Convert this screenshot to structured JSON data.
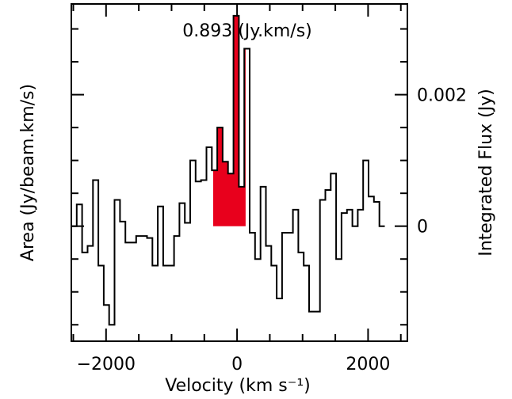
{
  "chart_data": {
    "type": "step",
    "annotation": "0.893 (Jy.km/s)",
    "xlabel": "Velocity (km s⁻¹)",
    "ylabel_left": "Area (Jy/beam.km/s)",
    "ylabel_right": "Integrated Flux (Jy)",
    "xlim": [
      -2530,
      2600
    ],
    "ylim": [
      -0.00175,
      0.00338
    ],
    "x_ticks": [
      -2000,
      0,
      2000
    ],
    "x_tick_labels": [
      "−2000",
      "0",
      "2000"
    ],
    "y_right_ticks": [
      0,
      0.002
    ],
    "y_right_tick_labels": [
      "0",
      "0.002"
    ],
    "grid": false,
    "bin_width": 82.5,
    "bins_start": -2530,
    "values": [
      0,
      0.00033,
      -0.0004,
      -0.0003,
      0.0007,
      -0.0006,
      -0.0012,
      -0.0015,
      0.0004,
      7e-05,
      -0.00025,
      -0.00025,
      -0.00015,
      -0.00015,
      -0.00018,
      -0.0006,
      0.0003,
      -0.0006,
      -0.0006,
      -0.00015,
      0.00035,
      5e-05,
      0.001,
      0.00068,
      0.0007,
      0.0012,
      0.00085,
      0.0015,
      0.00098,
      0.0008,
      0.0032,
      0.0006,
      0.0027,
      -0.0001,
      -0.0005,
      0.0006,
      -0.0003,
      -0.0006,
      -0.0011,
      -0.0001,
      -0.0001,
      0.00025,
      -0.0004,
      -0.0006,
      -0.0013,
      -0.0013,
      0.0004,
      0.00055,
      0.0008,
      -0.0005,
      0.0002,
      0.00025,
      0,
      0.00025,
      0.001,
      0.00045,
      0.00037,
      0
    ],
    "highlight": {
      "x_from": -365,
      "x_to": 130,
      "color": "#e8001c"
    }
  }
}
